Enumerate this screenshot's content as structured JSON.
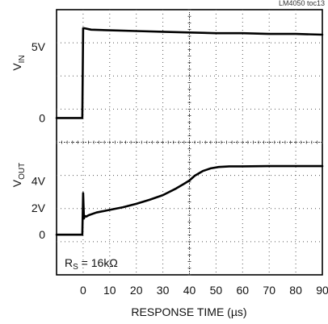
{
  "chart_data": {
    "type": "line",
    "tag": "LM4050 toc13",
    "xlabel": "RESPONSE TIME (µs)",
    "xlim": [
      -10,
      90
    ],
    "x_ticks": [
      "0",
      "10",
      "20",
      "30",
      "40",
      "50",
      "60",
      "70",
      "80",
      "90"
    ],
    "x_tick_values": [
      0,
      10,
      20,
      30,
      40,
      50,
      60,
      70,
      80,
      90
    ],
    "grid": "dotted, 10 columns × 8 rows",
    "annotation": {
      "base": "R",
      "sub": "S",
      "rest": " = 16kΩ"
    },
    "panels": [
      {
        "name": "vin",
        "ylabel": {
          "base": "V",
          "sub": "IN"
        },
        "tick_labels": [
          "5V",
          "0"
        ],
        "tick_values": [
          5,
          0
        ],
        "ylim": [
          -1.7,
          7.6
        ],
        "series": [
          {
            "x": [
              -10,
              -0.3,
              0.0,
              0.4,
              3,
              10,
              20,
              30,
              40,
              50,
              60,
              70,
              80,
              90
            ],
            "y": [
              0.0,
              0.0,
              6.3,
              6.3,
              6.2,
              6.15,
              6.1,
              6.05,
              6.0,
              5.95,
              5.95,
              5.9,
              5.9,
              5.85
            ]
          }
        ]
      },
      {
        "name": "vout",
        "ylabel": {
          "base": "V",
          "sub": "OUT"
        },
        "tick_labels": [
          "4V",
          "2V",
          "0"
        ],
        "tick_values": [
          4,
          2,
          0
        ],
        "ylim": [
          -3.0,
          6.9
        ],
        "series": [
          {
            "x": [
              -10,
              -0.3,
              0.0,
              0.3,
              0.6,
              1.2,
              2,
              5,
              10,
              15,
              20,
              25,
              30,
              35,
              38,
              40,
              42,
              45,
              48,
              51,
              55,
              60,
              70,
              80,
              90
            ],
            "y": [
              0.0,
              0.0,
              3.1,
              1.2,
              1.4,
              1.35,
              1.45,
              1.65,
              1.85,
              2.05,
              2.3,
              2.6,
              2.95,
              3.45,
              3.8,
              4.05,
              4.4,
              4.75,
              4.95,
              5.05,
              5.1,
              5.1,
              5.12,
              5.12,
              5.12
            ]
          }
        ]
      }
    ]
  }
}
